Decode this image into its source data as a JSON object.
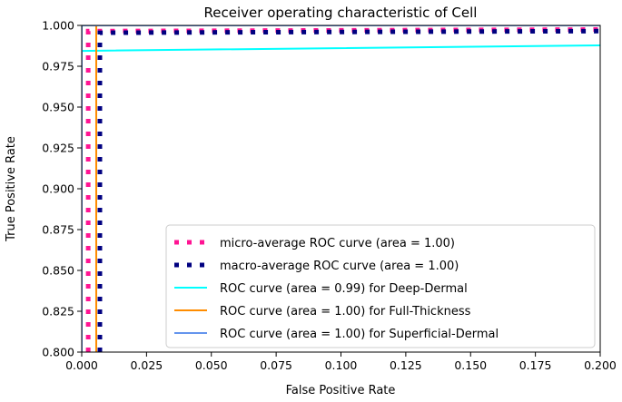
{
  "chart_data": {
    "type": "line",
    "title": "Receiver operating characteristic of Cell",
    "xlabel": "False Positive Rate",
    "ylabel": "True Positive Rate",
    "xlim": [
      0,
      0.2
    ],
    "ylim": [
      0.8,
      1.0
    ],
    "xticks": [
      "0.000",
      "0.025",
      "0.050",
      "0.075",
      "0.100",
      "0.125",
      "0.150",
      "0.175",
      "0.200"
    ],
    "yticks": [
      "0.800",
      "0.825",
      "0.850",
      "0.875",
      "0.900",
      "0.925",
      "0.950",
      "0.975",
      "1.000"
    ],
    "grid": false,
    "legend_position": "lower-right",
    "series": [
      {
        "name": "micro-average ROC curve (area = 1.00)",
        "color": "#ff1493",
        "style": "dotted",
        "x": [
          0.0025,
          0.0025,
          0.2
        ],
        "y": [
          0.8,
          0.9965,
          0.9975
        ]
      },
      {
        "name": "macro-average ROC curve (area = 1.00)",
        "color": "#000080",
        "style": "dotted",
        "x": [
          0.007,
          0.007,
          0.2
        ],
        "y": [
          0.8,
          0.9955,
          0.9965
        ]
      },
      {
        "name": "ROC curve (area = 0.99) for Deep-Dermal",
        "color": "#00ffff",
        "style": "solid",
        "x": [
          0,
          0,
          0.2
        ],
        "y": [
          0.8,
          0.9844,
          0.9878
        ]
      },
      {
        "name": "ROC curve (area = 1.00) for Full-Thickness",
        "color": "#ff8c00",
        "style": "solid",
        "x": [
          0.0056,
          0.0056,
          0.2
        ],
        "y": [
          0.8,
          1.0,
          1.0
        ]
      },
      {
        "name": "ROC curve (area = 1.00) for Superficial-Dermal",
        "color": "#6495ed",
        "style": "solid",
        "x": [
          0,
          0,
          0.2
        ],
        "y": [
          0.8,
          1.0,
          1.0
        ]
      }
    ]
  }
}
